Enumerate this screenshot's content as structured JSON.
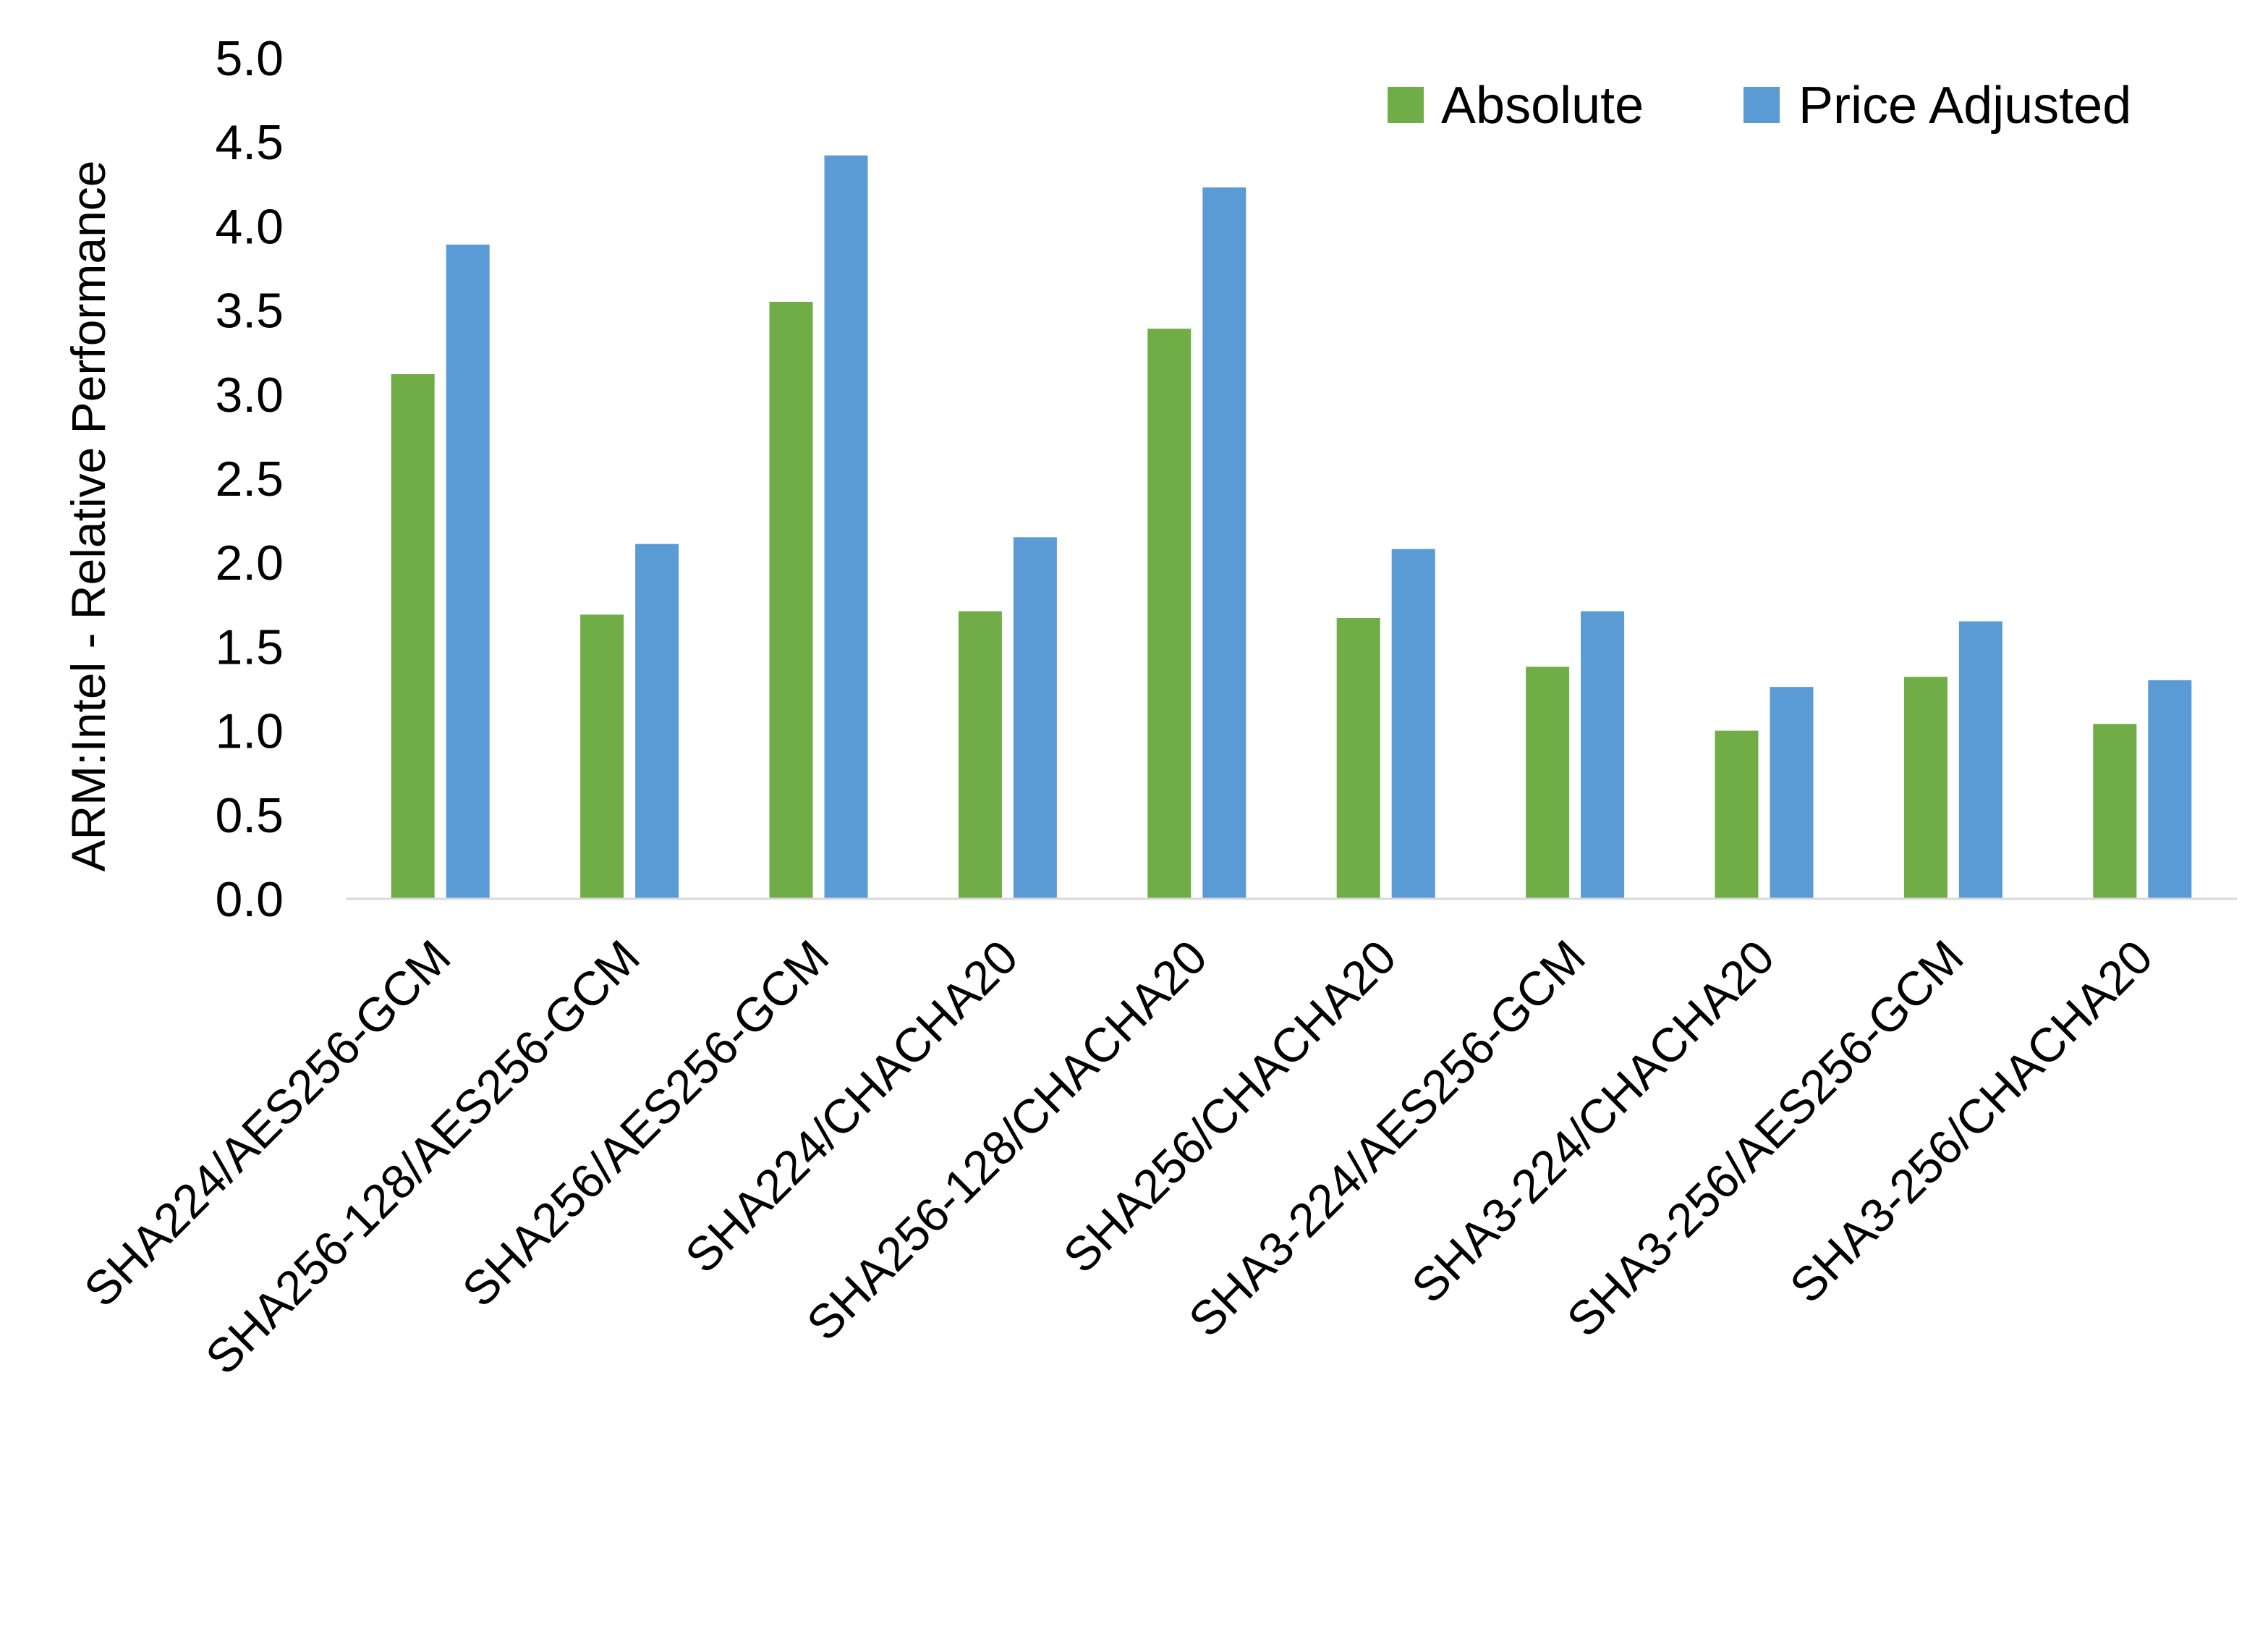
{
  "chart_data": {
    "type": "bar",
    "title": "",
    "xlabel": "",
    "ylabel": "ARM:Intel - Relative Performance",
    "ylim": [
      0,
      5.0
    ],
    "yticks": [
      "0.0",
      "0.5",
      "1.0",
      "1.5",
      "2.0",
      "2.5",
      "3.0",
      "3.5",
      "4.0",
      "4.5",
      "5.0"
    ],
    "grid": false,
    "legend_position": "top-right",
    "categories": [
      "SHA224/AES256-GCM",
      "SHA256-128/AES256-GCM",
      "SHA256/AES256-GCM",
      "SHA224/CHACHA20",
      "SHA256-128/CHACHA20",
      "SHA256/CHACHA20",
      "SHA3-224/AES256-GCM",
      "SHA3-224/CHACHA20",
      "SHA3-256/AES256-GCM",
      "SHA3-256/CHACHA20"
    ],
    "series": [
      {
        "name": "Absolute",
        "color": "#70AD47",
        "values": [
          3.12,
          1.69,
          3.55,
          1.71,
          3.39,
          1.67,
          1.38,
          1.0,
          1.32,
          1.04
        ]
      },
      {
        "name": "Price Adjusted",
        "color": "#5B9BD5",
        "values": [
          3.89,
          2.11,
          4.42,
          2.15,
          4.23,
          2.08,
          1.71,
          1.26,
          1.65,
          1.3
        ]
      }
    ]
  }
}
